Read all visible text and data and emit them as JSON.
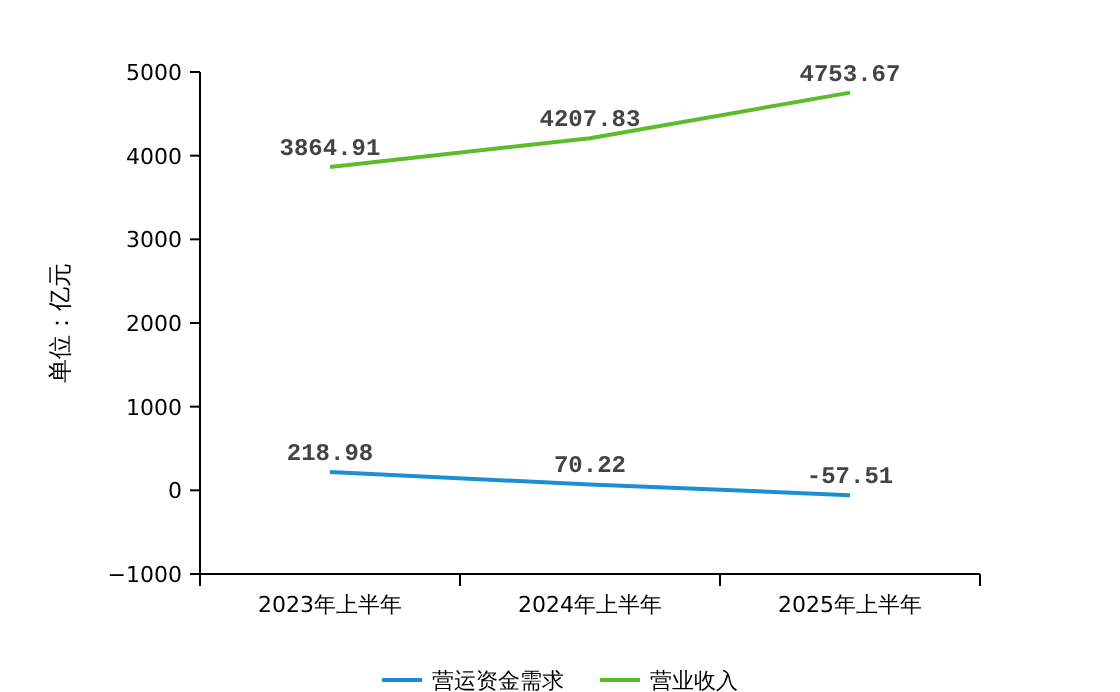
{
  "chart_data": {
    "type": "line",
    "ylabel": "单位：亿元",
    "categories": [
      "2023年上半年",
      "2024年上半年",
      "2025年上半年"
    ],
    "series": [
      {
        "name": "营运资金需求",
        "color": "#1b8fd2",
        "values": [
          218.98,
          70.22,
          -57.51
        ]
      },
      {
        "name": "营业收入",
        "color": "#5bbd2b",
        "values": [
          3864.91,
          4207.83,
          4753.67
        ]
      }
    ],
    "ylim": [
      -1000,
      5000
    ],
    "yticks": [
      -1000,
      0,
      1000,
      2000,
      3000,
      4000,
      5000
    ],
    "data_labels": true,
    "legend": "bottom",
    "grid": false,
    "marker": "none"
  }
}
